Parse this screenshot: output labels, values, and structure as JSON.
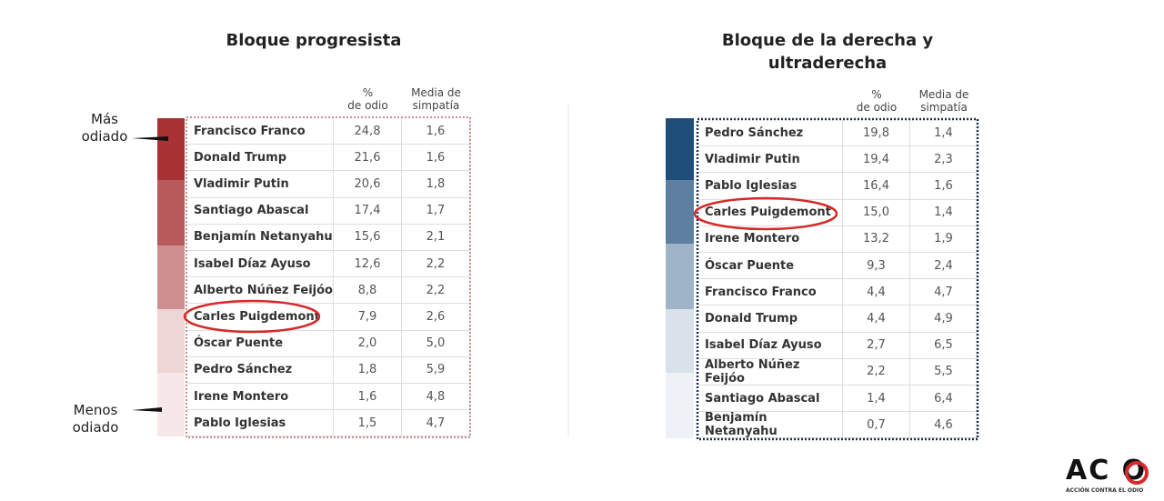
{
  "left": {
    "title": "Bloque progresista",
    "headers": [
      [
        "%",
        "de odio"
      ],
      [
        "Media de",
        "simpatía"
      ]
    ],
    "top_label": [
      "Más",
      "odiado"
    ],
    "bottom_label": [
      "Menos",
      "odiado"
    ],
    "rows": [
      [
        "Francisco Franco",
        "24,8",
        "1,6"
      ],
      [
        "Donald Trump",
        "21,6",
        "1,6"
      ],
      [
        "Vladimir Putin",
        "20,6",
        "1,8"
      ],
      [
        "Santiago Abascal",
        "17,4",
        "1,7"
      ],
      [
        "Benjamín Netanyahu",
        "15,6",
        "2,1"
      ],
      [
        "Isabel Díaz Ayuso",
        "12,6",
        "2,2"
      ],
      [
        "Alberto Núñez Feijóo",
        "8,8",
        "2,2"
      ],
      [
        "Carles Puigdemont",
        "7,9",
        "2,6"
      ],
      [
        "Óscar Puente",
        "2,0",
        "5,0"
      ],
      [
        "Pedro Sánchez",
        "1,8",
        "5,9"
      ],
      [
        "Irene Montero",
        "1,6",
        "4,8"
      ],
      [
        "Pablo Iglesias",
        "1,5",
        "4,7"
      ]
    ]
  },
  "right": {
    "title": [
      "Bloque de la derecha y",
      "ultraderecha"
    ],
    "headers": [
      [
        "%",
        "de odio"
      ],
      [
        "Media de",
        "simpatía"
      ]
    ],
    "rows": [
      [
        "Pedro Sánchez",
        "19,8",
        "1,4"
      ],
      [
        "Vladimir Putin",
        "19,4",
        "2,3"
      ],
      [
        "Pablo Iglesias",
        "16,4",
        "1,6"
      ],
      [
        "Carles Puigdemont",
        "15,0",
        "1,4"
      ],
      [
        "Irene Montero",
        "13,2",
        "1,9"
      ],
      [
        "Óscar Puente",
        "9,3",
        "2,4"
      ],
      [
        "Francisco Franco",
        "4,4",
        "4,7"
      ],
      [
        "Donald Trump",
        "4,4",
        "4,9"
      ],
      [
        "Isabel Díaz Ayuso",
        "2,7",
        "6,5"
      ],
      [
        "Alberto Núñez Feijóo",
        "2,2",
        "5,5"
      ],
      [
        "Santiago Abascal",
        "1,4",
        "6,4"
      ],
      [
        "Benjamín Netanyahu",
        "0,7",
        "4,6"
      ]
    ]
  },
  "logo": {
    "mark": "AC O",
    "caption": "ACCIÓN CONTRA EL ODIO"
  }
}
